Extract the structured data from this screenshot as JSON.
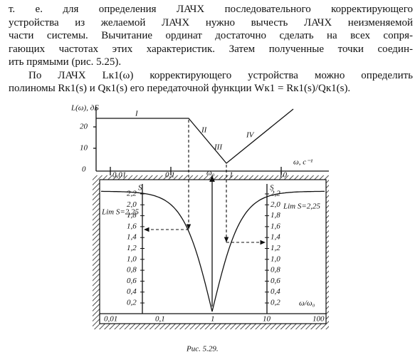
{
  "paragraphs": [
    {
      "lines": [
        "т. е. для определения ЛАЧХ последовательного корректирующего",
        "устройства из желаемой ЛАЧХ нужно вычесть ЛАЧХ неизменяемой",
        "части системы. Вычитание ординат достаточно сделать на всех сопря-",
        "гающих частотах этих характеристик. Затем полученные точки соедин-",
        "ить прямыми (рис. 5.25)."
      ]
    },
    {
      "lines": [
        "По ЛАЧХ Lк1(ω) корректирующего устройства можно определить",
        "полиномы Rк1(s) и Qк1(s) его передаточной функции Wк1 = Rк1(s)/Qк1(s)."
      ]
    }
  ],
  "figure": {
    "top": {
      "y_label": "L(ω), дБ",
      "yticks": [
        "20",
        "10",
        "0"
      ],
      "x_label": "ω, c⁻¹",
      "xticks": [
        "0,01",
        "0,1",
        "1",
        "10"
      ],
      "regions": [
        "I",
        "II",
        "III",
        "IV"
      ],
      "omega0": "ω₀"
    },
    "bottom": {
      "left_axis_label": "S",
      "right_axis_label": "S",
      "left_ticks": [
        "2,2",
        "2,0",
        "1,8",
        "1,6",
        "1,4",
        "1,2",
        "1,0",
        "0,8",
        "0,6",
        "0,4",
        "0,2"
      ],
      "right_ticks": [
        "2,2",
        "2,0",
        "1,8",
        "1,6",
        "1,4",
        "1,2",
        "1,0",
        "0,8",
        "0,6",
        "0,4",
        "0,2"
      ],
      "left_limit": "Lim S=2,25",
      "right_limit": "Lim S=2,25",
      "x_label": "ω/ω₀",
      "xticks": [
        "0,01",
        "0,1",
        "1",
        "10",
        "100"
      ]
    },
    "caption": "Рис. 5.29."
  }
}
